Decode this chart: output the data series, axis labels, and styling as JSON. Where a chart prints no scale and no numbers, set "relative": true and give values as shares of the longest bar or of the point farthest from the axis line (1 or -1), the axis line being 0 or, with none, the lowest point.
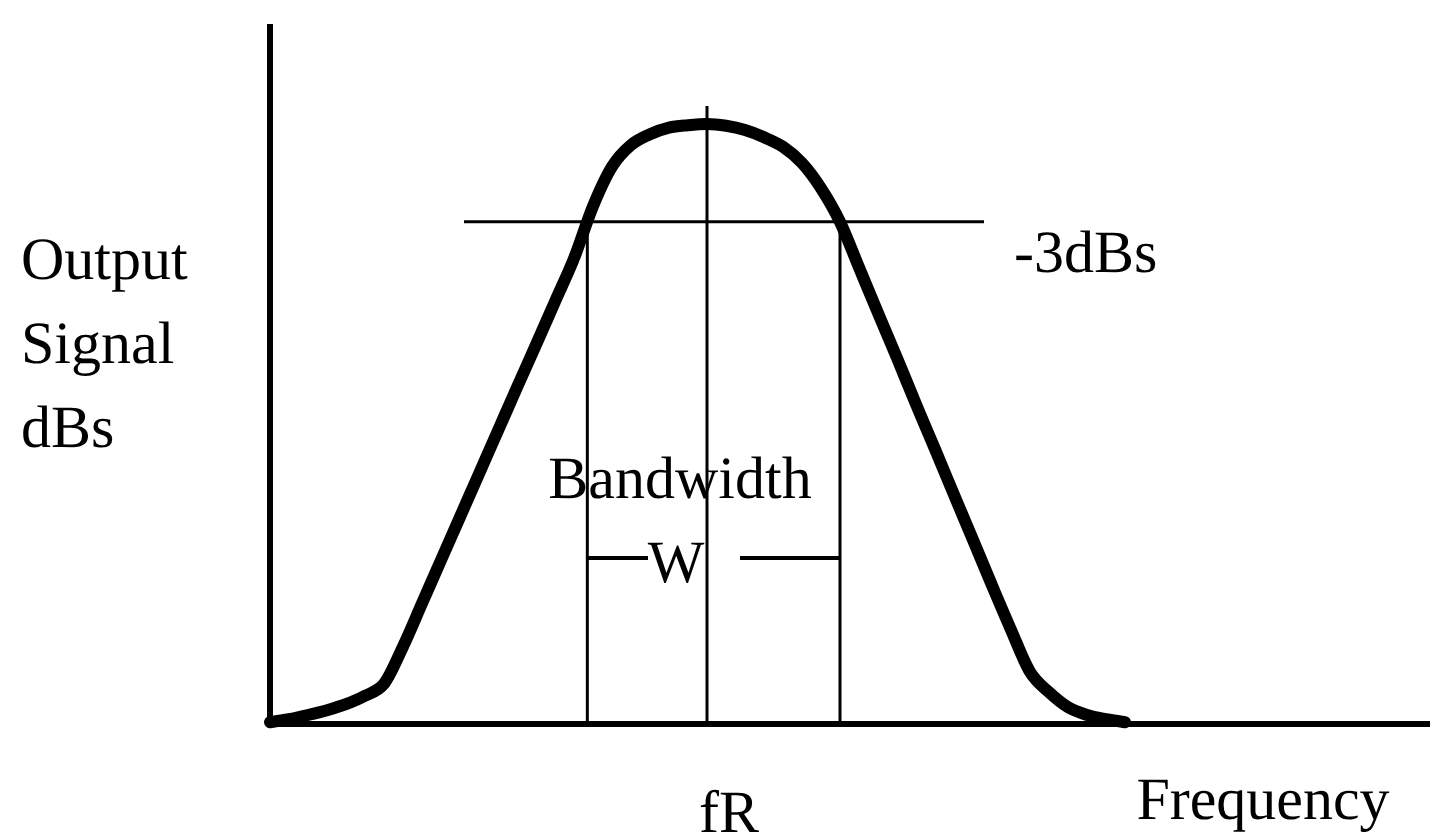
{
  "chart_data": {
    "type": "line",
    "relative": true,
    "xlabel": "Frequency",
    "ylabel": "Output Signal dBs",
    "categories": [
      null,
      null,
      null,
      null,
      null,
      null,
      null,
      null,
      null,
      null,
      null,
      null,
      null,
      null,
      null,
      null,
      null,
      null,
      null,
      null,
      null,
      null,
      null,
      null,
      null,
      null,
      null,
      null,
      null,
      null,
      null,
      null,
      null,
      null,
      null,
      null,
      null,
      null,
      null,
      null,
      null,
      null,
      null,
      null,
      null,
      null
    ],
    "series": [
      {
        "color": "#000000",
        "values": [
          0.003,
          0.008,
          0.015,
          0.023,
          0.033,
          0.047,
          0.067,
          0.129,
          0.201,
          0.273,
          0.345,
          0.417,
          0.489,
          0.561,
          0.632,
          0.704,
          0.776,
          0.863,
          0.929,
          0.965,
          0.983,
          0.994,
          0.998,
          1,
          0.997,
          0.99,
          0.978,
          0.962,
          0.935,
          0.893,
          0.837,
          0.761,
          0.685,
          0.61,
          0.533,
          0.458,
          0.382,
          0.307,
          0.231,
          0.157,
          0.087,
          0.053,
          0.028,
          0.015,
          0.008,
          0.003
        ]
      }
    ],
    "ref_lines": [
      {
        "axis": "y",
        "value": 0.837,
        "label": "-3dBs"
      }
    ],
    "annotations": [
      "Bandwidth",
      "W",
      "fR"
    ]
  }
}
